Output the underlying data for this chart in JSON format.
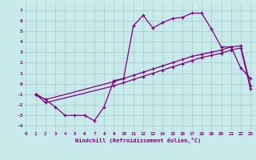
{
  "xlabel": "Windchill (Refroidissement éolien,°C)",
  "background_color": "#c8eaea",
  "grid_color": "#a8c8c8",
  "line_color": "#800080",
  "line1_x": [
    1,
    2,
    3,
    4,
    5,
    6,
    7,
    8,
    9,
    10,
    11,
    12,
    13,
    14,
    15,
    16,
    17,
    18,
    19,
    20,
    21,
    22,
    23
  ],
  "line1_y": [
    -1.0,
    -1.5,
    -2.2,
    -3.0,
    -3.0,
    -3.0,
    -3.5,
    -2.2,
    0.3,
    0.5,
    5.5,
    6.5,
    5.3,
    5.8,
    6.2,
    6.3,
    6.7,
    6.7,
    5.2,
    3.5,
    3.5,
    1.5,
    0.5
  ],
  "line2_x": [
    1,
    2,
    9,
    10,
    11,
    12,
    13,
    14,
    15,
    16,
    17,
    18,
    19,
    20,
    21,
    22,
    23
  ],
  "line2_y": [
    -1.0,
    -1.5,
    0.2,
    0.5,
    0.8,
    1.1,
    1.4,
    1.7,
    2.0,
    2.3,
    2.6,
    2.8,
    3.0,
    3.2,
    3.5,
    3.6,
    -0.2
  ],
  "line3_x": [
    1,
    2,
    9,
    10,
    11,
    12,
    13,
    14,
    15,
    16,
    17,
    18,
    19,
    20,
    21,
    22,
    23
  ],
  "line3_y": [
    -1.0,
    -1.8,
    -0.2,
    0.1,
    0.4,
    0.7,
    1.0,
    1.3,
    1.6,
    1.9,
    2.2,
    2.5,
    2.7,
    2.9,
    3.2,
    3.4,
    -0.5
  ],
  "ylim": [
    -4.5,
    7.8
  ],
  "xlim": [
    -0.3,
    23.3
  ],
  "yticks": [
    -4,
    -3,
    -2,
    -1,
    0,
    1,
    2,
    3,
    4,
    5,
    6,
    7
  ],
  "xticks": [
    0,
    1,
    2,
    3,
    4,
    5,
    6,
    7,
    8,
    9,
    10,
    11,
    12,
    13,
    14,
    15,
    16,
    17,
    18,
    19,
    20,
    21,
    22,
    23
  ]
}
